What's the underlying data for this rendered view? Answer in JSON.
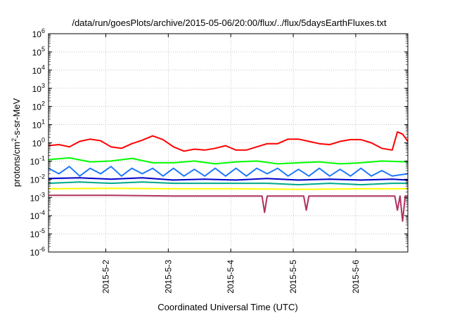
{
  "chart_data": {
    "type": "line",
    "title": "/data/run/goesPlots/archive/2015-05-06/20:00/flux/../flux/5daysEarthFluxes.txt",
    "xlabel": "Coordinated Universal Time (UTC)",
    "ylabel_parts": {
      "pre": "protons/cm",
      "sup": "2",
      "post": "-s-sr-MeV"
    },
    "y_scale": "log",
    "ylim": [
      1e-06,
      1000000.0
    ],
    "y_ticks": [
      {
        "base": "10",
        "exp": "-6",
        "value": 1e-06
      },
      {
        "base": "10",
        "exp": "-5",
        "value": 1e-05
      },
      {
        "base": "10",
        "exp": "-4",
        "value": 0.0001
      },
      {
        "base": "10",
        "exp": "-3",
        "value": 0.001
      },
      {
        "base": "10",
        "exp": "-2",
        "value": 0.01
      },
      {
        "base": "10",
        "exp": "-1",
        "value": 0.1
      },
      {
        "base": "10",
        "exp": "0",
        "value": 1.0
      },
      {
        "base": "10",
        "exp": "1",
        "value": 10.0
      },
      {
        "base": "10",
        "exp": "2",
        "value": 100.0
      },
      {
        "base": "10",
        "exp": "3",
        "value": 1000.0
      },
      {
        "base": "10",
        "exp": "4",
        "value": 10000.0
      },
      {
        "base": "10",
        "exp": "5",
        "value": 100000.0
      },
      {
        "base": "10",
        "exp": "6",
        "value": 1000000.0
      }
    ],
    "xlim": [
      "2015-05-01T02:00",
      "2015-05-06T20:00"
    ],
    "x_ticks": [
      {
        "label": "2015-5-2",
        "value": "2015-05-02T00:00"
      },
      {
        "label": "2015-5-3",
        "value": "2015-05-03T00:00"
      },
      {
        "label": "2015-5-4",
        "value": "2015-05-04T00:00"
      },
      {
        "label": "2015-5-5",
        "value": "2015-05-05T00:00"
      },
      {
        "label": "2015-5-6",
        "value": "2015-05-06T00:00"
      }
    ],
    "grid": true,
    "legend": "none",
    "series": [
      {
        "color": "#ff0000",
        "x": [
          "2015-05-01T02:00",
          "2015-05-01T06:00",
          "2015-05-01T10:00",
          "2015-05-01T14:00",
          "2015-05-01T18:00",
          "2015-05-01T22:00",
          "2015-05-02T02:00",
          "2015-05-02T06:00",
          "2015-05-02T10:00",
          "2015-05-02T14:00",
          "2015-05-02T18:00",
          "2015-05-02T22:00",
          "2015-05-03T02:00",
          "2015-05-03T06:00",
          "2015-05-03T10:00",
          "2015-05-03T14:00",
          "2015-05-03T18:00",
          "2015-05-03T22:00",
          "2015-05-04T02:00",
          "2015-05-04T06:00",
          "2015-05-04T10:00",
          "2015-05-04T14:00",
          "2015-05-04T18:00",
          "2015-05-04T22:00",
          "2015-05-05T02:00",
          "2015-05-05T06:00",
          "2015-05-05T10:00",
          "2015-05-05T14:00",
          "2015-05-05T18:00",
          "2015-05-05T22:00",
          "2015-05-06T02:00",
          "2015-05-06T06:00",
          "2015-05-06T10:00",
          "2015-05-06T14:00",
          "2015-05-06T16:00",
          "2015-05-06T18:00",
          "2015-05-06T20:00"
        ],
        "y": [
          0.7,
          0.8,
          0.6,
          1.2,
          1.6,
          1.3,
          0.6,
          0.5,
          0.9,
          1.4,
          2.4,
          1.5,
          0.6,
          0.35,
          0.45,
          0.4,
          0.5,
          0.7,
          0.4,
          0.4,
          0.6,
          0.9,
          0.9,
          1.6,
          1.6,
          1.2,
          0.9,
          0.8,
          1.2,
          1.5,
          1.5,
          1.0,
          0.5,
          0.4,
          4.0,
          3.0,
          1.2
        ]
      },
      {
        "color": "#00ff00",
        "x": [
          "2015-05-01T02:00",
          "2015-05-01T10:00",
          "2015-05-01T18:00",
          "2015-05-02T02:00",
          "2015-05-02T10:00",
          "2015-05-02T18:00",
          "2015-05-03T02:00",
          "2015-05-03T10:00",
          "2015-05-03T18:00",
          "2015-05-04T02:00",
          "2015-05-04T10:00",
          "2015-05-04T18:00",
          "2015-05-05T02:00",
          "2015-05-05T10:00",
          "2015-05-05T18:00",
          "2015-05-06T02:00",
          "2015-05-06T10:00",
          "2015-05-06T20:00"
        ],
        "y": [
          0.12,
          0.15,
          0.09,
          0.1,
          0.14,
          0.08,
          0.08,
          0.1,
          0.07,
          0.09,
          0.1,
          0.07,
          0.08,
          0.09,
          0.07,
          0.08,
          0.1,
          0.09
        ]
      },
      {
        "color": "#1e78ff",
        "x": [
          "2015-05-01T02:00",
          "2015-05-01T06:00",
          "2015-05-01T10:00",
          "2015-05-01T14:00",
          "2015-05-01T18:00",
          "2015-05-01T22:00",
          "2015-05-02T02:00",
          "2015-05-02T06:00",
          "2015-05-02T10:00",
          "2015-05-02T14:00",
          "2015-05-02T18:00",
          "2015-05-02T22:00",
          "2015-05-03T02:00",
          "2015-05-03T06:00",
          "2015-05-03T10:00",
          "2015-05-03T14:00",
          "2015-05-03T18:00",
          "2015-05-03T22:00",
          "2015-05-04T02:00",
          "2015-05-04T06:00",
          "2015-05-04T10:00",
          "2015-05-04T14:00",
          "2015-05-04T18:00",
          "2015-05-04T22:00",
          "2015-05-05T02:00",
          "2015-05-05T06:00",
          "2015-05-05T10:00",
          "2015-05-05T14:00",
          "2015-05-05T18:00",
          "2015-05-05T22:00",
          "2015-05-06T02:00",
          "2015-05-06T06:00",
          "2015-05-06T10:00",
          "2015-05-06T14:00",
          "2015-05-06T20:00"
        ],
        "y": [
          0.04,
          0.02,
          0.05,
          0.015,
          0.04,
          0.02,
          0.05,
          0.015,
          0.04,
          0.02,
          0.04,
          0.015,
          0.04,
          0.015,
          0.035,
          0.015,
          0.04,
          0.015,
          0.04,
          0.015,
          0.04,
          0.02,
          0.04,
          0.015,
          0.035,
          0.015,
          0.04,
          0.015,
          0.035,
          0.015,
          0.04,
          0.015,
          0.03,
          0.015,
          0.02
        ]
      },
      {
        "color": "#0000cd",
        "x": [
          "2015-05-01T02:00",
          "2015-05-01T14:00",
          "2015-05-02T02:00",
          "2015-05-02T14:00",
          "2015-05-03T02:00",
          "2015-05-03T14:00",
          "2015-05-04T02:00",
          "2015-05-04T14:00",
          "2015-05-05T02:00",
          "2015-05-05T14:00",
          "2015-05-06T02:00",
          "2015-05-06T14:00",
          "2015-05-06T20:00"
        ],
        "y": [
          0.011,
          0.012,
          0.01,
          0.012,
          0.009,
          0.01,
          0.009,
          0.011,
          0.009,
          0.01,
          0.009,
          0.01,
          0.009
        ]
      },
      {
        "color": "#00a88a",
        "x": [
          "2015-05-01T02:00",
          "2015-05-01T14:00",
          "2015-05-02T02:00",
          "2015-05-02T14:00",
          "2015-05-03T02:00",
          "2015-05-03T14:00",
          "2015-05-04T02:00",
          "2015-05-04T14:00",
          "2015-05-05T02:00",
          "2015-05-05T14:00",
          "2015-05-06T02:00",
          "2015-05-06T14:00",
          "2015-05-06T20:00"
        ],
        "y": [
          0.006,
          0.007,
          0.006,
          0.007,
          0.006,
          0.006,
          0.006,
          0.006,
          0.005,
          0.006,
          0.005,
          0.006,
          0.006
        ]
      },
      {
        "color": "#ffff00",
        "x": [
          "2015-05-01T02:00",
          "2015-05-02T02:00",
          "2015-05-03T02:00",
          "2015-05-04T02:00",
          "2015-05-05T02:00",
          "2015-05-06T02:00",
          "2015-05-06T20:00"
        ],
        "y": [
          0.003,
          0.0032,
          0.003,
          0.003,
          0.0028,
          0.003,
          0.003
        ]
      },
      {
        "color": "#b03060",
        "x": [
          "2015-05-01T02:00",
          "2015-05-02T02:00",
          "2015-05-03T02:00",
          "2015-05-04T02:00",
          "2015-05-04T12:00",
          "2015-05-04T13:00",
          "2015-05-04T14:00",
          "2015-05-05T02:00",
          "2015-05-05T04:00",
          "2015-05-05T05:00",
          "2015-05-05T06:00",
          "2015-05-06T02:00",
          "2015-05-06T15:00",
          "2015-05-06T16:00",
          "2015-05-06T17:00",
          "2015-05-06T18:00",
          "2015-05-06T19:00",
          "2015-05-06T20:00"
        ],
        "y": [
          0.0013,
          0.0013,
          0.0012,
          0.0012,
          0.0012,
          0.00015,
          0.0012,
          0.0012,
          0.0012,
          0.0002,
          0.0012,
          0.0012,
          0.0012,
          0.0002,
          0.0012,
          5e-05,
          0.0012,
          0.0012
        ]
      }
    ]
  }
}
